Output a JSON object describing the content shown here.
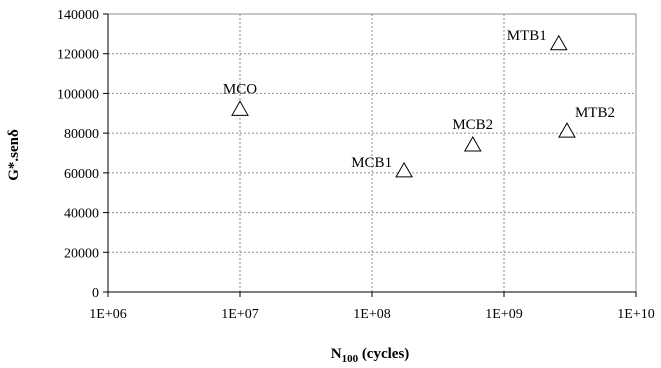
{
  "chart_data": {
    "type": "scatter",
    "title": "",
    "xlabel": {
      "main": "N",
      "sub": "100",
      "unit": " (cycles)"
    },
    "ylabel": "G*.senδ",
    "x_scale": "log",
    "xlim": [
      1000000,
      10000000000
    ],
    "ylim": [
      0,
      140000
    ],
    "x_ticks": [
      {
        "value": 1000000,
        "label": "1E+06"
      },
      {
        "value": 10000000,
        "label": "1E+07"
      },
      {
        "value": 100000000,
        "label": "1E+08"
      },
      {
        "value": 1000000000,
        "label": "1E+09"
      },
      {
        "value": 10000000000,
        "label": "1E+10"
      }
    ],
    "y_ticks": [
      {
        "value": 0,
        "label": "0"
      },
      {
        "value": 20000,
        "label": "20000"
      },
      {
        "value": 40000,
        "label": "40000"
      },
      {
        "value": 60000,
        "label": "60000"
      },
      {
        "value": 80000,
        "label": "80000"
      },
      {
        "value": 100000,
        "label": "100000"
      },
      {
        "value": 120000,
        "label": "120000"
      },
      {
        "value": 140000,
        "label": "140000"
      }
    ],
    "grid": true,
    "legend": false,
    "marker": "triangle-open",
    "points": [
      {
        "label": "MCO",
        "x": 10000000,
        "y": 92000,
        "label_pos": "above"
      },
      {
        "label": "MCB1",
        "x": 175000000,
        "y": 61000,
        "label_pos": "left"
      },
      {
        "label": "MCB2",
        "x": 580000000,
        "y": 74000,
        "label_pos": "above"
      },
      {
        "label": "MTB1",
        "x": 2600000000,
        "y": 125000,
        "label_pos": "left"
      },
      {
        "label": "MTB2",
        "x": 3000000000,
        "y": 81000,
        "label_pos": "above-right"
      }
    ]
  }
}
